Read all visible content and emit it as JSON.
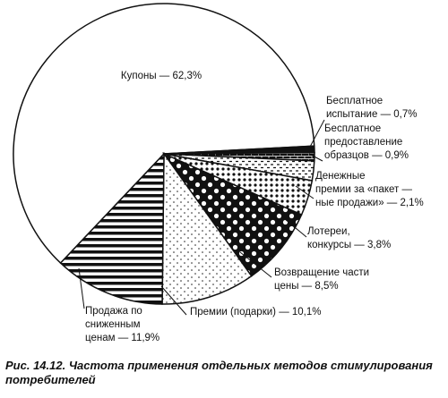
{
  "chart_data": {
    "type": "pie",
    "categories": [
      "Купоны — 62,3%",
      "Бесплатное\nиспытание — 0,7%",
      "Бесплатное\nпредоставление\nобразцов — 0,9%",
      "Денежные\nпремии за «пакет —\nные продажи» — 2,1%",
      "Лотереи,\nконкурсы — 3,8%",
      "Возвращение части\nцены — 8,5%",
      "Премии (подарки) — 10,1%",
      "Продажа по\nсниженным\nценам — 11,9%"
    ],
    "values": [
      62.3,
      0.7,
      0.9,
      2.1,
      3.8,
      8.5,
      10.1,
      11.9
    ],
    "caption": "Рис. 14.12. Частота применения отдельных методов стимулирования потребителей"
  }
}
